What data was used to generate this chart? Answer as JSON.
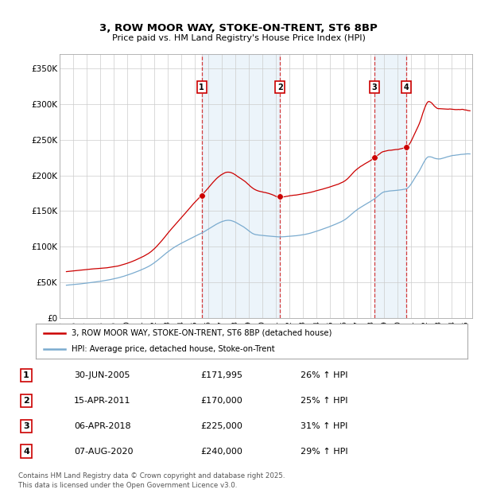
{
  "title": "3, ROW MOOR WAY, STOKE-ON-TRENT, ST6 8BP",
  "subtitle": "Price paid vs. HM Land Registry's House Price Index (HPI)",
  "background_color": "#ffffff",
  "plot_bg_color": "#ffffff",
  "grid_color": "#cccccc",
  "ylim": [
    0,
    370000
  ],
  "yticks": [
    0,
    50000,
    100000,
    150000,
    200000,
    250000,
    300000,
    350000
  ],
  "ytick_labels": [
    "£0",
    "£50K",
    "£100K",
    "£150K",
    "£200K",
    "£250K",
    "£300K",
    "£350K"
  ],
  "xlim_start": 1995.3,
  "xlim_end": 2025.5,
  "xticks": [
    1995,
    1996,
    1997,
    1998,
    1999,
    2000,
    2001,
    2002,
    2003,
    2004,
    2005,
    2006,
    2007,
    2008,
    2009,
    2010,
    2011,
    2012,
    2013,
    2014,
    2015,
    2016,
    2017,
    2018,
    2019,
    2020,
    2021,
    2022,
    2023,
    2024,
    2025
  ],
  "sale_dates": [
    2005.5,
    2011.29,
    2018.27,
    2020.6
  ],
  "sale_prices": [
    171995,
    170000,
    225000,
    240000
  ],
  "sale_labels": [
    "1",
    "2",
    "3",
    "4"
  ],
  "sale_info": [
    {
      "label": "1",
      "date": "30-JUN-2005",
      "price": "£171,995",
      "hpi": "26% ↑ HPI"
    },
    {
      "label": "2",
      "date": "15-APR-2011",
      "price": "£170,000",
      "hpi": "25% ↑ HPI"
    },
    {
      "label": "3",
      "date": "06-APR-2018",
      "price": "£225,000",
      "hpi": "31% ↑ HPI"
    },
    {
      "label": "4",
      "date": "07-AUG-2020",
      "price": "£240,000",
      "hpi": "29% ↑ HPI"
    }
  ],
  "red_color": "#cc0000",
  "blue_color": "#7aabcf",
  "legend_red_label": "3, ROW MOOR WAY, STOKE-ON-TRENT, ST6 8BP (detached house)",
  "legend_blue_label": "HPI: Average price, detached house, Stoke-on-Trent",
  "footer_text": "Contains HM Land Registry data © Crown copyright and database right 2025.\nThis data is licensed under the Open Government Licence v3.0.",
  "shade_color": "#d6e8f5",
  "shade_alpha": 0.45
}
